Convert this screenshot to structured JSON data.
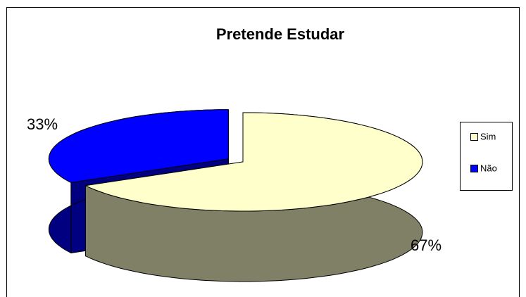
{
  "chart_data": {
    "type": "pie",
    "title": "Pretende Estudar",
    "categories": [
      "Sim",
      "Não"
    ],
    "values": [
      67,
      33
    ],
    "value_labels": [
      "67%",
      "33%"
    ],
    "colors": [
      "#FFFFCC",
      "#0000FF"
    ],
    "legend": "right"
  }
}
